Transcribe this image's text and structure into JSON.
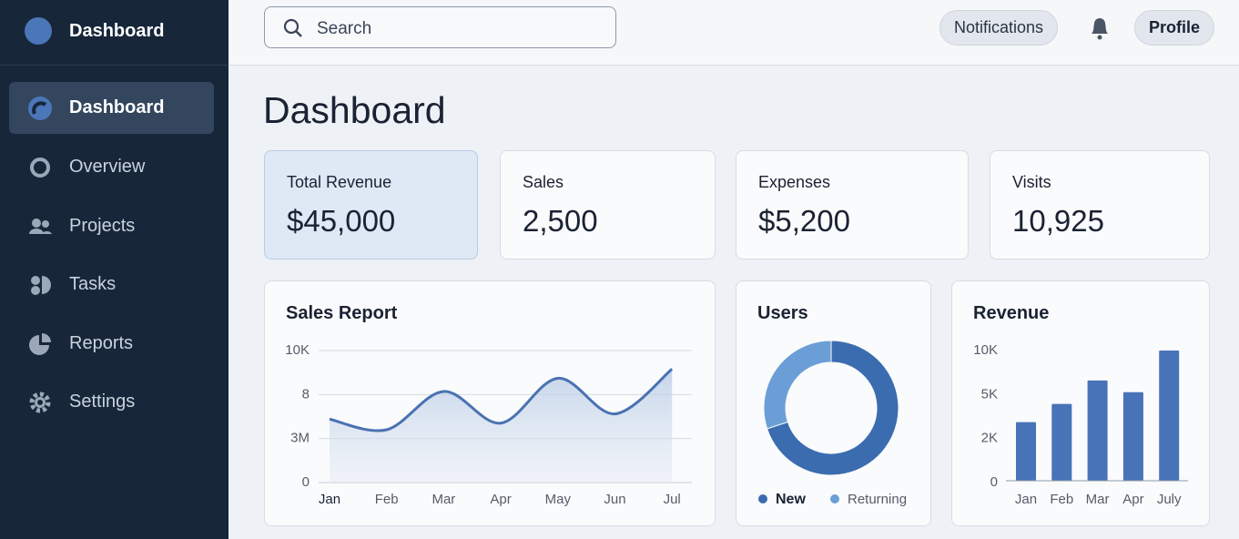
{
  "sidebar": {
    "brand": "Dashboard",
    "nav": [
      "Dashboard",
      "Overview",
      "Projects",
      "Tasks",
      "Reports",
      "Settings"
    ]
  },
  "topbar": {
    "search_placeholder": "Search",
    "notifications": "Notifications",
    "profile": "Profile"
  },
  "page_title": "Dashboard",
  "stats": [
    {
      "label": "Total Revenue",
      "value": "$45,000"
    },
    {
      "label": "Sales",
      "value": "2,500"
    },
    {
      "label": "Expenses",
      "value": "$5,200"
    },
    {
      "label": "Visits",
      "value": "10,925"
    }
  ],
  "chart_data": [
    {
      "type": "line",
      "title": "Sales Report",
      "categories": [
        "Jan",
        "Feb",
        "Mar",
        "Apr",
        "May",
        "Jun",
        "Jul"
      ],
      "values": [
        4800,
        4000,
        6900,
        4500,
        7900,
        5200,
        8600
      ],
      "ylim": [
        0,
        10000
      ],
      "ytick_labels": [
        "10K",
        "8",
        "3M",
        "0"
      ],
      "color": "#4a72b2",
      "grid": true
    },
    {
      "type": "donut",
      "title": "Users",
      "categories": [
        "New",
        "Returning"
      ],
      "values": [
        70,
        30
      ],
      "colors": [
        "#3b6cb0",
        "#6b9ed6"
      ]
    },
    {
      "type": "bar",
      "title": "Revenue",
      "categories": [
        "Jan",
        "Feb",
        "Mar",
        "Apr",
        "July"
      ],
      "values": [
        4500,
        5900,
        7700,
        6800,
        10000
      ],
      "ylim": [
        0,
        10000
      ],
      "ytick_labels": [
        "10K",
        "5K",
        "2K",
        "0"
      ],
      "color": "#4873b8",
      "grid": false
    }
  ]
}
